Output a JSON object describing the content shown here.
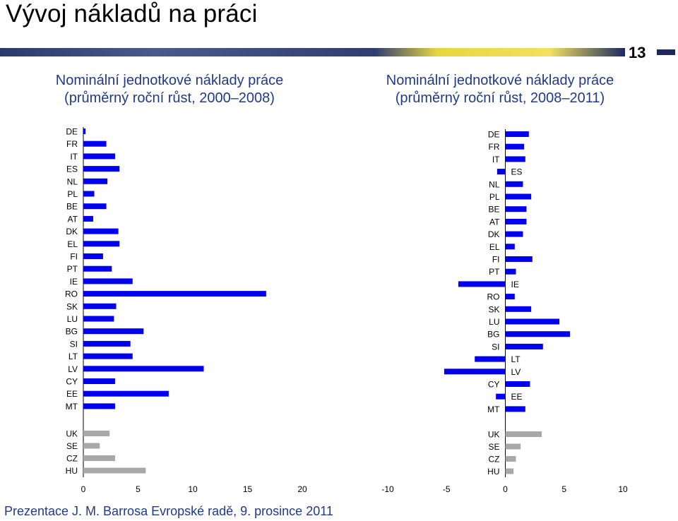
{
  "page": {
    "title": "Vývoj nákladů na práci",
    "slide_number": "13",
    "footer": "Prezentace J. M. Barrosa Evropské radě, 9. prosince 2011"
  },
  "colors": {
    "eurozone": "#0000ee",
    "non_eurozone": "#a8a8a8",
    "subtitle": "#1f3a8a"
  },
  "chart_data": [
    {
      "type": "bar",
      "orientation": "horizontal",
      "title_line1": "Nominální jednotkové náklady práce",
      "title_line2": "(průměrný roční růst, 2000–2008)",
      "xlim": [
        0,
        20
      ],
      "ticks": [
        0,
        5,
        10,
        15,
        20
      ],
      "series": [
        {
          "color": "#0000ee",
          "categories": [
            "DE",
            "FR",
            "IT",
            "ES",
            "NL",
            "PL",
            "BE",
            "AT",
            "DK",
            "EL",
            "FI",
            "PT",
            "IE",
            "RO",
            "SK",
            "LU",
            "BG",
            "SI",
            "LT",
            "LV",
            "CY",
            "EE",
            "MT"
          ],
          "values": [
            0.2,
            2.1,
            2.9,
            3.3,
            2.2,
            1.0,
            2.1,
            0.9,
            3.2,
            3.3,
            1.8,
            2.6,
            4.5,
            16.7,
            3.0,
            2.8,
            5.5,
            4.3,
            4.5,
            11.0,
            2.9,
            7.8,
            2.9
          ]
        },
        {
          "color": "#a8a8a8",
          "categories": [
            "UK",
            "SE",
            "CZ",
            "HU"
          ],
          "values": [
            2.4,
            1.5,
            2.9,
            5.7
          ]
        }
      ]
    },
    {
      "type": "bar",
      "orientation": "horizontal",
      "title_line1": "Nominální jednotkové náklady práce",
      "title_line2": "(průměrný roční růst, 2008–2011)",
      "xlim": [
        -10,
        10
      ],
      "ticks": [
        -10,
        -5,
        0,
        5,
        10
      ],
      "series": [
        {
          "color": "#0000ee",
          "categories": [
            "DE",
            "FR",
            "IT",
            "ES",
            "NL",
            "PL",
            "BE",
            "AT",
            "DK",
            "EL",
            "FI",
            "PT",
            "IE",
            "RO",
            "SK",
            "LU",
            "BG",
            "SI",
            "LT",
            "LV",
            "CY",
            "EE",
            "MT"
          ],
          "values": [
            2.0,
            1.6,
            1.7,
            -0.7,
            1.5,
            2.2,
            1.8,
            1.8,
            1.5,
            0.8,
            2.3,
            0.9,
            -4.0,
            0.8,
            2.2,
            4.6,
            5.5,
            3.2,
            -2.6,
            -5.2,
            2.1,
            -0.8,
            1.7
          ]
        },
        {
          "color": "#a8a8a8",
          "categories": [
            "UK",
            "SE",
            "CZ",
            "HU"
          ],
          "values": [
            3.1,
            1.3,
            0.9,
            0.7
          ]
        }
      ]
    }
  ]
}
